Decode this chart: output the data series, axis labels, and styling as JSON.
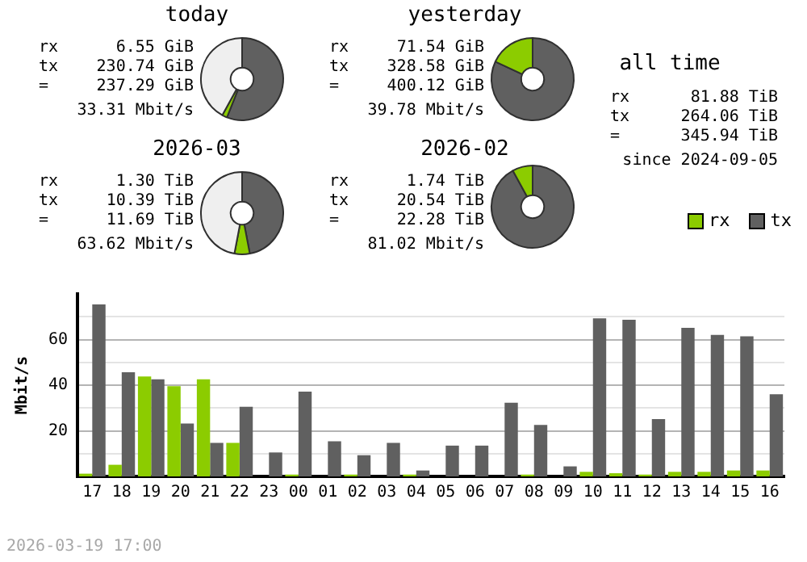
{
  "chart_data": [
    {
      "type": "donut",
      "title": "today",
      "categories": [
        null,
        null,
        null
      ],
      "values": [
        56,
        2,
        42
      ],
      "colors": [
        "#606060",
        "#8ccc00",
        "#efefef"
      ],
      "annotations": [
        "rx",
        "6.55 GiB",
        "tx",
        "230.74 GiB",
        "=",
        "237.29 GiB",
        "33.31 Mbit/s"
      ]
    },
    {
      "type": "donut",
      "title": "yesterday",
      "categories": [
        null,
        null
      ],
      "values": [
        82,
        18
      ],
      "colors": [
        "#606060",
        "#8ccc00"
      ],
      "annotations": [
        "rx",
        "71.54 GiB",
        "tx",
        "328.58 GiB",
        "=",
        "400.12 GiB",
        "39.78 Mbit/s"
      ]
    },
    {
      "type": "donut",
      "title": "2026-03",
      "categories": [
        null,
        null,
        null
      ],
      "values": [
        47,
        6,
        47
      ],
      "colors": [
        "#606060",
        "#8ccc00",
        "#efefef"
      ],
      "annotations": [
        "rx",
        "1.30 TiB",
        "tx",
        "10.39 TiB",
        "=",
        "11.69 TiB",
        "63.62 Mbit/s"
      ]
    },
    {
      "type": "donut",
      "title": "2026-02",
      "categories": [
        null,
        null
      ],
      "values": [
        92,
        8
      ],
      "colors": [
        "#606060",
        "#8ccc00"
      ],
      "annotations": [
        "rx",
        "1.74 TiB",
        "tx",
        "20.54 TiB",
        "=",
        "22.28 TiB",
        "81.02 Mbit/s"
      ]
    },
    {
      "type": "other",
      "title": "all time",
      "annotations": [
        "rx",
        "81.88 TiB",
        "tx",
        "264.06 TiB",
        "=",
        "345.94 TiB",
        "since 2024-09-05"
      ]
    },
    {
      "type": "bar",
      "ylabel": "Mbit/s",
      "categories": [
        "17",
        "18",
        "19",
        "20",
        "21",
        "22",
        "23",
        "00",
        "01",
        "02",
        "03",
        "04",
        "05",
        "06",
        "07",
        "08",
        "09",
        "10",
        "11",
        "12",
        "13",
        "14",
        "15",
        "16"
      ],
      "series": [
        {
          "name": "rx",
          "color": "#8ccc00",
          "values": [
            1.2,
            5.1,
            43.8,
            39.6,
            42.6,
            14.7,
            0,
            0.8,
            0,
            0.8,
            0,
            0.8,
            0,
            0,
            0,
            0.8,
            0,
            2.0,
            1.4,
            0.8,
            2.0,
            2.0,
            2.6,
            2.6
          ]
        },
        {
          "name": "tx",
          "color": "#606060",
          "values": [
            75.4,
            45.7,
            42.6,
            23.2,
            14.7,
            30.5,
            10.5,
            37.2,
            15.4,
            9.3,
            14.7,
            2.6,
            13.5,
            13.5,
            32.3,
            22.6,
            4.4,
            69.3,
            68.7,
            25.1,
            65.1,
            62.0,
            61.4,
            36.0
          ]
        }
      ],
      "ylim": [
        0,
        80
      ],
      "yticks": [
        {
          "value": 10,
          "label": null
        },
        20,
        {
          "value": 30,
          "label": null
        },
        40,
        {
          "value": 50,
          "label": null
        },
        60,
        {
          "value": 70,
          "label": null
        }
      ],
      "grid": "y",
      "legend": "top right",
      "annotations": [
        "2026-03-19 17:00"
      ]
    }
  ]
}
